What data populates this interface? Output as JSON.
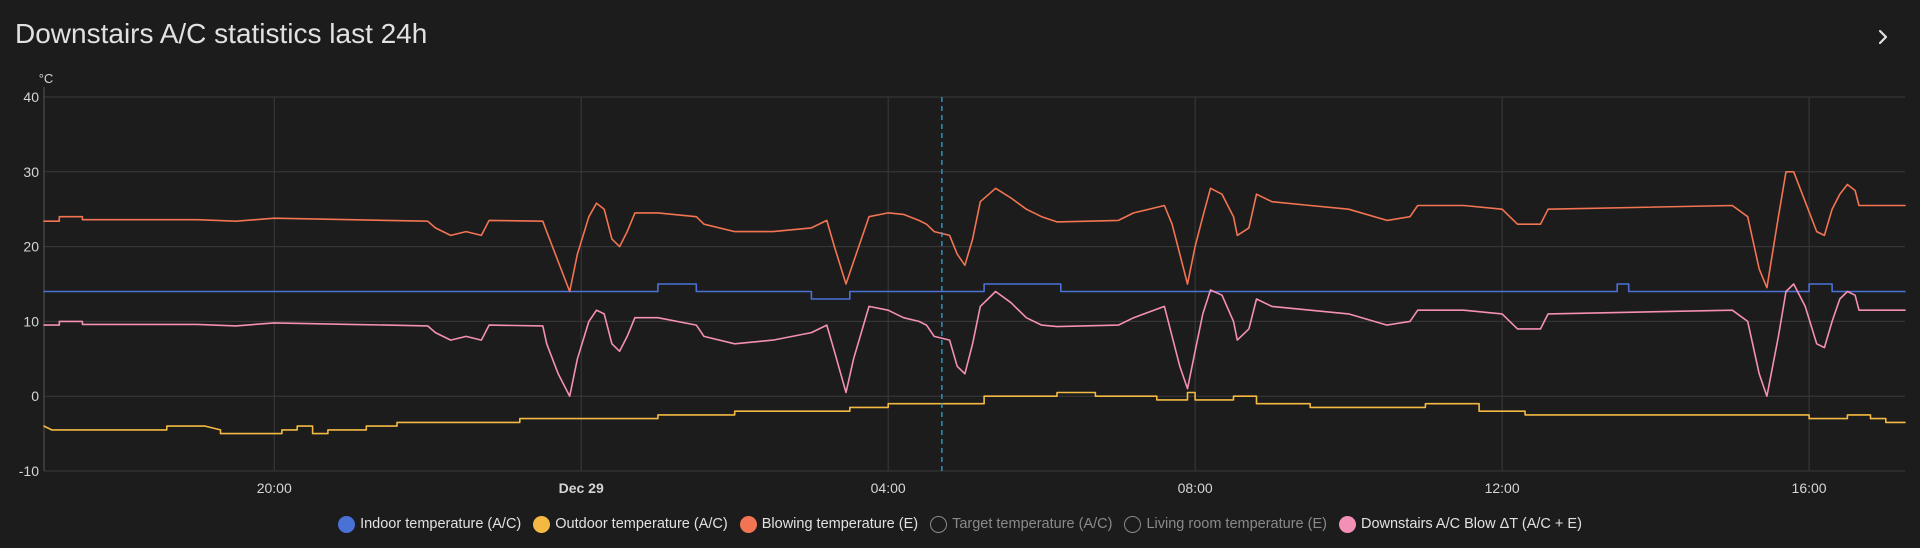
{
  "card": {
    "title": "Downstairs A/C statistics last 24h"
  },
  "legend": [
    {
      "label": "Indoor temperature (A/C)",
      "color": "#4a72d6",
      "hidden": false
    },
    {
      "label": "Outdoor temperature (A/C)",
      "color": "#f4b942",
      "hidden": false
    },
    {
      "label": "Blowing temperature (E)",
      "color": "#f27452",
      "hidden": false
    },
    {
      "label": "Target temperature (A/C)",
      "color": "#8a8a8a",
      "hidden": true
    },
    {
      "label": "Living room temperature (E)",
      "color": "#8a8a8a",
      "hidden": true
    },
    {
      "label": "Downstairs A/C Blow ΔT (A/C + E)",
      "color": "#f48fb5",
      "hidden": false
    }
  ],
  "chart_data": {
    "type": "line",
    "title": "",
    "xlabel": "",
    "ylabel": "°C",
    "x_unit": "hours, elapsed from the left edge of the plot (left edge ≈ 17:00 Dec 28)",
    "xlim": [
      0,
      24.25
    ],
    "ylim": [
      -10,
      40
    ],
    "y_ticks": [
      "40",
      "30",
      "20",
      "10",
      "0",
      "-10"
    ],
    "x_ticks": [
      {
        "at": 3,
        "label": "20:00",
        "bold": false
      },
      {
        "at": 7,
        "label": "Dec 29",
        "bold": true
      },
      {
        "at": 11,
        "label": "04:00",
        "bold": false
      },
      {
        "at": 15,
        "label": "08:00",
        "bold": false
      },
      {
        "at": 19,
        "label": "12:00",
        "bold": false
      },
      {
        "at": 23,
        "label": "16:00",
        "bold": false
      }
    ],
    "grid": true,
    "legend_position": "bottom",
    "cursor_x": 11.7,
    "series": [
      {
        "name": "Indoor temperature (A/C)",
        "color": "#4a72d6",
        "step": true,
        "points": [
          [
            0,
            14
          ],
          [
            8.0,
            14
          ],
          [
            8.0,
            15
          ],
          [
            8.5,
            15
          ],
          [
            8.5,
            14
          ],
          [
            10.0,
            14
          ],
          [
            10.0,
            13
          ],
          [
            10.5,
            13
          ],
          [
            10.5,
            14
          ],
          [
            12.25,
            14
          ],
          [
            12.25,
            15
          ],
          [
            13.25,
            15
          ],
          [
            13.25,
            14
          ],
          [
            20.5,
            14
          ],
          [
            20.5,
            15
          ],
          [
            20.65,
            15
          ],
          [
            20.65,
            14
          ],
          [
            23.0,
            14
          ],
          [
            23.0,
            15
          ],
          [
            23.3,
            15
          ],
          [
            23.3,
            14
          ],
          [
            24.25,
            14
          ]
        ]
      },
      {
        "name": "Outdoor temperature (A/C)",
        "color": "#f4b942",
        "step": true,
        "points": [
          [
            0,
            -4
          ],
          [
            0.1,
            -4.5
          ],
          [
            1.6,
            -4.5
          ],
          [
            1.6,
            -4
          ],
          [
            2.1,
            -4
          ],
          [
            2.3,
            -4.5
          ],
          [
            2.3,
            -5
          ],
          [
            3.1,
            -5
          ],
          [
            3.1,
            -4.5
          ],
          [
            3.3,
            -4.5
          ],
          [
            3.3,
            -4
          ],
          [
            3.5,
            -4
          ],
          [
            3.5,
            -5
          ],
          [
            3.7,
            -5
          ],
          [
            3.7,
            -4.5
          ],
          [
            4.2,
            -4.5
          ],
          [
            4.2,
            -4
          ],
          [
            4.6,
            -4
          ],
          [
            4.6,
            -3.5
          ],
          [
            6.2,
            -3.5
          ],
          [
            6.2,
            -3
          ],
          [
            8.0,
            -3
          ],
          [
            8.0,
            -2.5
          ],
          [
            9.0,
            -2.5
          ],
          [
            9.0,
            -2
          ],
          [
            10.5,
            -2
          ],
          [
            10.5,
            -1.5
          ],
          [
            11.0,
            -1.5
          ],
          [
            11.0,
            -1
          ],
          [
            12.25,
            -1
          ],
          [
            12.25,
            0
          ],
          [
            13.2,
            0
          ],
          [
            13.2,
            0.5
          ],
          [
            13.7,
            0.5
          ],
          [
            13.7,
            0
          ],
          [
            14.5,
            0
          ],
          [
            14.5,
            -0.5
          ],
          [
            14.9,
            -0.5
          ],
          [
            14.9,
            0.5
          ],
          [
            15.0,
            0.5
          ],
          [
            15.0,
            -0.5
          ],
          [
            15.5,
            -0.5
          ],
          [
            15.5,
            0
          ],
          [
            15.8,
            0
          ],
          [
            15.8,
            -1
          ],
          [
            16.5,
            -1
          ],
          [
            16.5,
            -1.5
          ],
          [
            18.0,
            -1.5
          ],
          [
            18.0,
            -1
          ],
          [
            18.7,
            -1
          ],
          [
            18.7,
            -2
          ],
          [
            19.3,
            -2
          ],
          [
            19.3,
            -2.5
          ],
          [
            23.0,
            -2.5
          ],
          [
            23.0,
            -3
          ],
          [
            23.5,
            -3
          ],
          [
            23.5,
            -2.5
          ],
          [
            23.8,
            -2.5
          ],
          [
            23.8,
            -3
          ],
          [
            24.0,
            -3
          ],
          [
            24.0,
            -3.5
          ],
          [
            24.25,
            -3.5
          ]
        ]
      },
      {
        "name": "Blowing temperature (E)",
        "color": "#f27452",
        "step": false,
        "points": [
          [
            0,
            23.4
          ],
          [
            0.2,
            23.4
          ],
          [
            0.2,
            24
          ],
          [
            0.5,
            24
          ],
          [
            0.5,
            23.6
          ],
          [
            2.0,
            23.6
          ],
          [
            2.5,
            23.4
          ],
          [
            3.0,
            23.8
          ],
          [
            4.0,
            23.6
          ],
          [
            5.0,
            23.4
          ],
          [
            5.1,
            22.5
          ],
          [
            5.3,
            21.5
          ],
          [
            5.5,
            22
          ],
          [
            5.7,
            21.5
          ],
          [
            5.8,
            23.5
          ],
          [
            6.5,
            23.4
          ],
          [
            6.55,
            22
          ],
          [
            6.7,
            18
          ],
          [
            6.85,
            14
          ],
          [
            6.95,
            19
          ],
          [
            7.1,
            24
          ],
          [
            7.2,
            25.8
          ],
          [
            7.3,
            25
          ],
          [
            7.4,
            21
          ],
          [
            7.5,
            20
          ],
          [
            7.6,
            22
          ],
          [
            7.7,
            24.5
          ],
          [
            8.0,
            24.5
          ],
          [
            8.5,
            24
          ],
          [
            8.6,
            23
          ],
          [
            9.0,
            22
          ],
          [
            9.5,
            22
          ],
          [
            10.0,
            22.5
          ],
          [
            10.2,
            23.5
          ],
          [
            10.3,
            20
          ],
          [
            10.45,
            15
          ],
          [
            10.55,
            18
          ],
          [
            10.75,
            24
          ],
          [
            11.0,
            24.5
          ],
          [
            11.2,
            24.3
          ],
          [
            11.4,
            23.5
          ],
          [
            11.5,
            23
          ],
          [
            11.6,
            22
          ],
          [
            11.8,
            21.5
          ],
          [
            11.9,
            19
          ],
          [
            12.0,
            17.5
          ],
          [
            12.1,
            21
          ],
          [
            12.2,
            26
          ],
          [
            12.4,
            27.8
          ],
          [
            12.6,
            26.5
          ],
          [
            12.8,
            25
          ],
          [
            13.0,
            24
          ],
          [
            13.2,
            23.3
          ],
          [
            14.0,
            23.5
          ],
          [
            14.2,
            24.5
          ],
          [
            14.6,
            25.5
          ],
          [
            14.7,
            23
          ],
          [
            14.8,
            19
          ],
          [
            14.9,
            15
          ],
          [
            15.0,
            20
          ],
          [
            15.1,
            24
          ],
          [
            15.2,
            27.8
          ],
          [
            15.35,
            27
          ],
          [
            15.5,
            24
          ],
          [
            15.55,
            21.5
          ],
          [
            15.7,
            22.5
          ],
          [
            15.8,
            27
          ],
          [
            16.0,
            26
          ],
          [
            16.5,
            25.5
          ],
          [
            17.0,
            25
          ],
          [
            17.5,
            23.5
          ],
          [
            17.8,
            24
          ],
          [
            17.9,
            25.5
          ],
          [
            18.5,
            25.5
          ],
          [
            19.0,
            25
          ],
          [
            19.2,
            23
          ],
          [
            19.5,
            23
          ],
          [
            19.6,
            25
          ],
          [
            22.0,
            25.5
          ],
          [
            22.2,
            24
          ],
          [
            22.35,
            17
          ],
          [
            22.45,
            14.5
          ],
          [
            22.6,
            24
          ],
          [
            22.7,
            30
          ],
          [
            22.8,
            30
          ],
          [
            22.95,
            26
          ],
          [
            23.1,
            22
          ],
          [
            23.2,
            21.5
          ],
          [
            23.3,
            25
          ],
          [
            23.4,
            27
          ],
          [
            23.5,
            28.3
          ],
          [
            23.6,
            27.5
          ],
          [
            23.65,
            25.5
          ],
          [
            24.0,
            25.5
          ],
          [
            24.25,
            25.5
          ]
        ]
      },
      {
        "name": "Downstairs A/C Blow ΔT (A/C + E)",
        "color": "#f48fb5",
        "step": false,
        "points": [
          [
            0,
            9.5
          ],
          [
            0.2,
            9.5
          ],
          [
            0.2,
            10
          ],
          [
            0.5,
            10
          ],
          [
            0.5,
            9.6
          ],
          [
            2.0,
            9.6
          ],
          [
            2.5,
            9.4
          ],
          [
            3.0,
            9.8
          ],
          [
            4.0,
            9.6
          ],
          [
            5.0,
            9.4
          ],
          [
            5.1,
            8.5
          ],
          [
            5.3,
            7.5
          ],
          [
            5.5,
            8
          ],
          [
            5.7,
            7.5
          ],
          [
            5.8,
            9.5
          ],
          [
            6.5,
            9.4
          ],
          [
            6.55,
            7
          ],
          [
            6.7,
            3
          ],
          [
            6.85,
            0
          ],
          [
            6.95,
            5
          ],
          [
            7.1,
            10
          ],
          [
            7.2,
            11.5
          ],
          [
            7.3,
            11
          ],
          [
            7.4,
            7
          ],
          [
            7.5,
            6
          ],
          [
            7.6,
            8
          ],
          [
            7.7,
            10.5
          ],
          [
            8.0,
            10.5
          ],
          [
            8.5,
            9.5
          ],
          [
            8.6,
            8
          ],
          [
            9.0,
            7
          ],
          [
            9.5,
            7.5
          ],
          [
            10.0,
            8.5
          ],
          [
            10.2,
            9.5
          ],
          [
            10.3,
            6
          ],
          [
            10.45,
            0.5
          ],
          [
            10.55,
            5
          ],
          [
            10.75,
            12
          ],
          [
            11.0,
            11.5
          ],
          [
            11.2,
            10.5
          ],
          [
            11.4,
            10
          ],
          [
            11.5,
            9.5
          ],
          [
            11.6,
            8
          ],
          [
            11.8,
            7.5
          ],
          [
            11.9,
            4
          ],
          [
            12.0,
            3
          ],
          [
            12.1,
            7
          ],
          [
            12.2,
            12
          ],
          [
            12.4,
            14
          ],
          [
            12.6,
            12.5
          ],
          [
            12.8,
            10.5
          ],
          [
            13.0,
            9.5
          ],
          [
            13.2,
            9.3
          ],
          [
            14.0,
            9.5
          ],
          [
            14.2,
            10.5
          ],
          [
            14.6,
            12
          ],
          [
            14.7,
            8
          ],
          [
            14.8,
            4
          ],
          [
            14.9,
            1
          ],
          [
            15.0,
            6
          ],
          [
            15.1,
            11
          ],
          [
            15.2,
            14.2
          ],
          [
            15.35,
            13.5
          ],
          [
            15.5,
            10
          ],
          [
            15.55,
            7.5
          ],
          [
            15.7,
            9
          ],
          [
            15.8,
            13
          ],
          [
            16.0,
            12
          ],
          [
            16.5,
            11.5
          ],
          [
            17.0,
            11
          ],
          [
            17.5,
            9.5
          ],
          [
            17.8,
            10
          ],
          [
            17.9,
            11.5
          ],
          [
            18.5,
            11.5
          ],
          [
            19.0,
            11
          ],
          [
            19.2,
            9
          ],
          [
            19.5,
            9
          ],
          [
            19.6,
            11
          ],
          [
            22.0,
            11.5
          ],
          [
            22.2,
            10
          ],
          [
            22.35,
            3
          ],
          [
            22.45,
            0
          ],
          [
            22.6,
            8
          ],
          [
            22.7,
            14
          ],
          [
            22.8,
            15
          ],
          [
            22.95,
            12
          ],
          [
            23.1,
            7
          ],
          [
            23.2,
            6.5
          ],
          [
            23.3,
            10
          ],
          [
            23.4,
            13
          ],
          [
            23.5,
            14
          ],
          [
            23.6,
            13.5
          ],
          [
            23.65,
            11.5
          ],
          [
            24.0,
            11.5
          ],
          [
            24.25,
            11.5
          ]
        ]
      }
    ]
  }
}
